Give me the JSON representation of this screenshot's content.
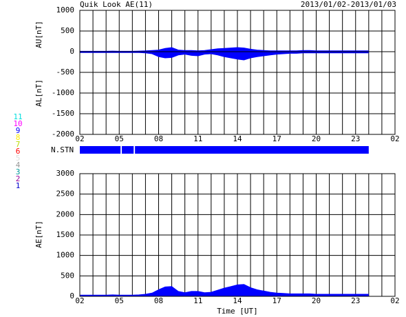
{
  "chart_data": [
    {
      "type": "area",
      "title": "Quik Look AE(11)",
      "subtitle": "2013/01/02-2013/01/03",
      "y_labels": [
        "AU[nT]",
        "AL[nT]"
      ],
      "x": [
        0,
        0.5,
        1,
        1.5,
        2,
        2.5,
        3,
        3.5,
        4,
        4.5,
        5,
        5.5,
        6,
        6.5,
        7,
        7.5,
        8,
        8.5,
        9,
        9.5,
        10,
        10.5,
        11,
        11.5,
        12,
        12.5,
        13,
        13.5,
        14,
        14.5,
        15,
        15.5,
        16,
        16.5,
        17,
        17.5,
        18,
        18.5,
        19,
        19.5,
        20,
        20.5,
        21,
        21.5,
        22
      ],
      "series": [
        {
          "name": "AU",
          "color": "#0000ff",
          "values": [
            10,
            10,
            10,
            10,
            10,
            15,
            10,
            10,
            10,
            15,
            20,
            30,
            40,
            80,
            100,
            40,
            30,
            30,
            20,
            30,
            50,
            70,
            80,
            90,
            100,
            90,
            60,
            40,
            30,
            20,
            20,
            20,
            20,
            20,
            30,
            30,
            20,
            20,
            20,
            20,
            20,
            20,
            20,
            20,
            20
          ]
        },
        {
          "name": "AL",
          "color": "#0000ff",
          "values": [
            -20,
            -20,
            -20,
            -20,
            -20,
            -20,
            -20,
            -20,
            -20,
            -20,
            -30,
            -50,
            -120,
            -150,
            -140,
            -80,
            -60,
            -90,
            -100,
            -60,
            -50,
            -80,
            -120,
            -150,
            -180,
            -200,
            -150,
            -120,
            -100,
            -80,
            -60,
            -50,
            -40,
            -40,
            -30,
            -30,
            -30,
            -30,
            -30,
            -30,
            -30,
            -30,
            -30,
            -30,
            -30
          ]
        }
      ],
      "xlim": [
        0,
        24
      ],
      "xticks": [
        {
          "value": 0,
          "label": "02"
        },
        {
          "value": 3,
          "label": "05"
        },
        {
          "value": 6,
          "label": "08"
        },
        {
          "value": 9,
          "label": "11"
        },
        {
          "value": 12,
          "label": "14"
        },
        {
          "value": 15,
          "label": "17"
        },
        {
          "value": 18,
          "label": "20"
        },
        {
          "value": 21,
          "label": "23"
        },
        {
          "value": 24,
          "label": "02"
        }
      ],
      "xgrid": [
        0,
        1,
        2,
        3,
        4,
        5,
        6,
        7,
        8,
        9,
        10,
        11,
        12,
        13,
        14,
        15,
        16,
        17,
        18,
        19,
        20,
        21,
        22,
        23,
        24
      ],
      "ylim": [
        -2000,
        1000
      ],
      "yticks": [
        -2000,
        -1500,
        -1000,
        -500,
        0,
        500,
        1000
      ]
    },
    {
      "type": "area",
      "ylabel": "AE[nT]",
      "xlabel": "Time [UT]",
      "x": [
        0,
        0.5,
        1,
        1.5,
        2,
        2.5,
        3,
        3.5,
        4,
        4.5,
        5,
        5.5,
        6,
        6.5,
        7,
        7.5,
        8,
        8.5,
        9,
        9.5,
        10,
        10.5,
        11,
        11.5,
        12,
        12.5,
        13,
        13.5,
        14,
        14.5,
        15,
        15.5,
        16,
        16.5,
        17,
        17.5,
        18,
        18.5,
        19,
        19.5,
        20,
        20.5,
        21,
        21.5,
        22
      ],
      "series": [
        {
          "name": "AE",
          "color": "#0000ff",
          "values": [
            30,
            30,
            30,
            30,
            30,
            35,
            30,
            30,
            30,
            35,
            50,
            80,
            160,
            230,
            240,
            120,
            90,
            120,
            120,
            90,
            100,
            150,
            200,
            240,
            280,
            290,
            210,
            160,
            130,
            100,
            80,
            70,
            60,
            60,
            60,
            60,
            50,
            50,
            50,
            50,
            50,
            50,
            50,
            50,
            50
          ]
        }
      ],
      "xlim": [
        0,
        24
      ],
      "xticks": [
        {
          "value": 0,
          "label": "02"
        },
        {
          "value": 3,
          "label": "05"
        },
        {
          "value": 6,
          "label": "08"
        },
        {
          "value": 9,
          "label": "11"
        },
        {
          "value": 12,
          "label": "14"
        },
        {
          "value": 15,
          "label": "17"
        },
        {
          "value": 18,
          "label": "20"
        },
        {
          "value": 21,
          "label": "23"
        },
        {
          "value": 24,
          "label": "02"
        }
      ],
      "xgrid": [
        0,
        1,
        2,
        3,
        4,
        5,
        6,
        7,
        8,
        9,
        10,
        11,
        12,
        13,
        14,
        15,
        16,
        17,
        18,
        19,
        20,
        21,
        22,
        23,
        24
      ],
      "ylim": [
        0,
        3000
      ],
      "yticks": [
        0,
        500,
        1000,
        1500,
        2000,
        2500,
        3000
      ]
    }
  ],
  "station_panel": {
    "label": "N.STN",
    "color": "#0000ff",
    "segments": [
      [
        0,
        3.1
      ],
      [
        3.2,
        4.1
      ],
      [
        4.2,
        22
      ]
    ]
  },
  "station_legend": [
    {
      "label": "11",
      "color": "#00dddd"
    },
    {
      "label": "10",
      "color": "#ff00ff"
    },
    {
      "label": "9",
      "color": "#0000ff"
    },
    {
      "label": "8",
      "color": "#ffee00"
    },
    {
      "label": "7",
      "color": "#bbdd00"
    },
    {
      "label": "6",
      "color": "#ff0000"
    },
    {
      "label": "5",
      "color": "#dddddd"
    },
    {
      "label": "4",
      "color": "#999999"
    },
    {
      "label": "3",
      "color": "#009999"
    },
    {
      "label": "2",
      "color": "#990099"
    },
    {
      "label": "1",
      "color": "#0000cc"
    }
  ]
}
